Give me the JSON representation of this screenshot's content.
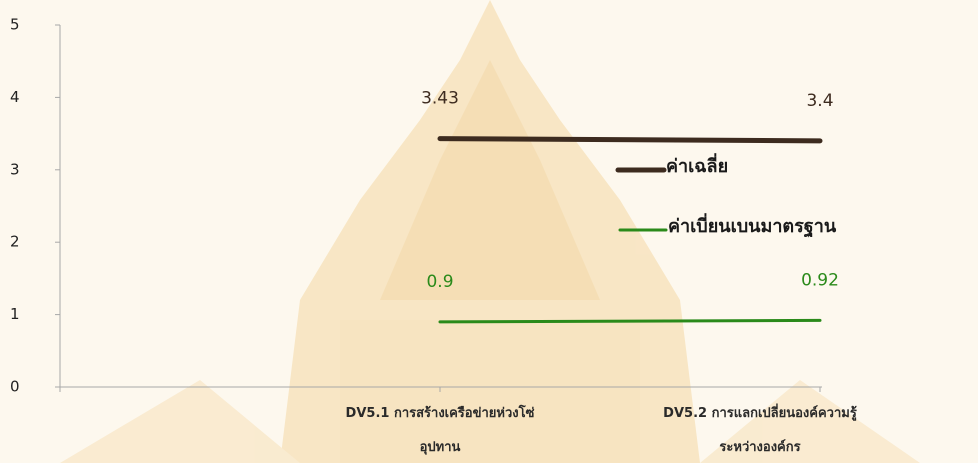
{
  "chart_data": {
    "type": "line",
    "categories": [
      null,
      "DV5.1 การสร้างเครือข่ายห่วงโซ่อุปทาน",
      "DV5.2 การแลกเปลี่ยนองค์ความรู้ระหว่างองค์กร"
    ],
    "series": [
      {
        "name": "ค่าเฉลี่ย",
        "color": "#3d2b1f",
        "values": [
          null,
          3.43,
          3.4
        ]
      },
      {
        "name": "ค่าเบี่ยนเบนมาตรฐาน",
        "color": "#2a8a1a",
        "values": [
          null,
          0.9,
          0.92
        ]
      }
    ],
    "ylim": [
      0,
      5
    ],
    "yticks": [
      0,
      1,
      2,
      3,
      4,
      5
    ],
    "grid": false,
    "legend": "right"
  }
}
